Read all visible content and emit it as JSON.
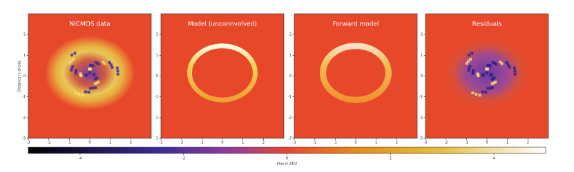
{
  "chart_data": [
    {
      "type": "image",
      "title": "NICMOS data",
      "ylabel": "Distance in arcsec",
      "xlim": [
        -3,
        3
      ],
      "ylim": [
        -3,
        3
      ],
      "xticks": [
        -3,
        -2,
        -1,
        0,
        1,
        2
      ],
      "yticks": [
        -3,
        -2,
        -1,
        0,
        1,
        2
      ]
    },
    {
      "type": "image",
      "title": "Model (unconnvolved)",
      "xlim": [
        -3,
        3
      ],
      "ylim": [
        -3,
        3
      ],
      "xticks": [
        -3,
        -2,
        -1,
        0,
        1,
        2
      ],
      "yticks": [
        -3,
        -2,
        -1,
        0,
        1,
        2
      ]
    },
    {
      "type": "image",
      "title": "Forward model",
      "xlim": [
        -3,
        3
      ],
      "ylim": [
        -3,
        3
      ],
      "xticks": [
        -3,
        -2,
        -1,
        0,
        1,
        2
      ],
      "yticks": [
        -3,
        -2,
        -1,
        0,
        1,
        2
      ]
    },
    {
      "type": "image",
      "title": "Residuals",
      "xlim": [
        -3,
        3
      ],
      "ylim": [
        -3,
        3
      ],
      "xticks": [
        -3,
        -2,
        -1,
        0,
        1,
        2
      ],
      "yticks": [
        -3,
        -2,
        -1,
        0,
        1,
        2
      ]
    }
  ],
  "colorbar": {
    "label": "Flux in ADU",
    "lim": [
      -5,
      5
    ],
    "ticks": [
      -4,
      -2,
      0,
      2,
      4
    ]
  }
}
